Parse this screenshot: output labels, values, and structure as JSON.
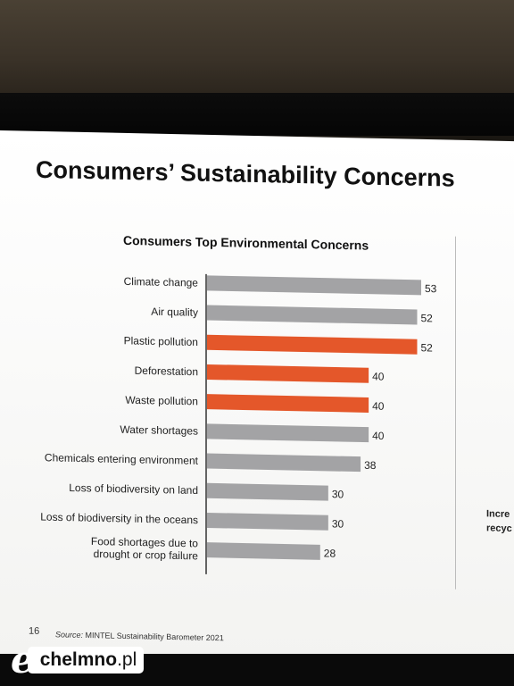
{
  "slide": {
    "title": "Consumers’ Sustainability Concerns",
    "page_number": "16",
    "source_label": "Source:",
    "source_text": "MINTEL Sustainability Barometer 2021",
    "side_text_line1": "Incre",
    "side_text_line2": "recyc"
  },
  "chart_data": {
    "type": "bar",
    "orientation": "horizontal",
    "title": "Consumers Top Environmental Concerns",
    "categories": [
      "Climate change",
      "Air quality",
      "Plastic pollution",
      "Deforestation",
      "Waste pollution",
      "Water shortages",
      "Chemicals entering  environment",
      "Loss of biodiversity on land",
      "Loss of biodiversity in the oceans",
      [
        "Food shortages due to",
        "drought or crop failure"
      ]
    ],
    "values": [
      53,
      52,
      52,
      40,
      40,
      40,
      38,
      30,
      30,
      28
    ],
    "highlighted": [
      false,
      false,
      true,
      true,
      true,
      false,
      false,
      false,
      false,
      false
    ],
    "colors": {
      "default": "#a3a3a5",
      "highlight": "#e4572a"
    },
    "xlabel": "",
    "ylabel": "",
    "xlim": [
      0,
      53
    ],
    "grid": false,
    "data_labels": true
  },
  "watermark": {
    "letter": "e",
    "brand": "chelmno",
    "domain": ".pl"
  }
}
